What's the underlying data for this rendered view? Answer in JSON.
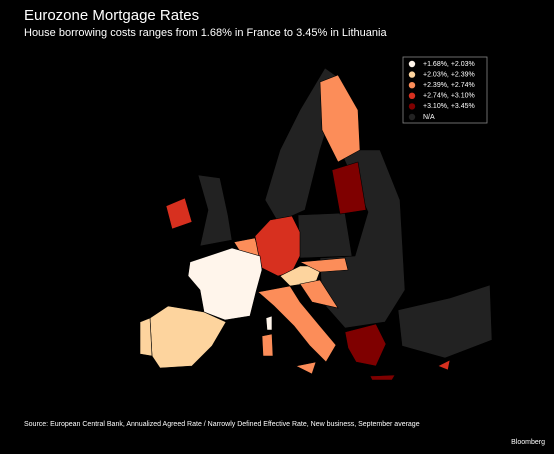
{
  "header": {
    "title": "Eurozone Mortgage Rates",
    "subtitle": "House borrowing costs ranges from 1.68% in France to 3.45% in Lithuania"
  },
  "legend": [
    {
      "label": "+1.68%, +2.03%",
      "color": "#fff5eb"
    },
    {
      "label": "+2.03%, +2.39%",
      "color": "#fdd49e"
    },
    {
      "label": "+2.39%, +2.74%",
      "color": "#fc8d59"
    },
    {
      "label": "+2.74%, +3.10%",
      "color": "#d7301f"
    },
    {
      "label": "+3.10%, +3.45%",
      "color": "#7f0000"
    },
    {
      "label": "N/A",
      "color": "#222222"
    }
  ],
  "footer": {
    "source": "Source: European Central Bank,  Annualized Agreed Rate / Narrowly Defined Effective Rate, New business, September average",
    "credit": "Bloomberg"
  }
}
